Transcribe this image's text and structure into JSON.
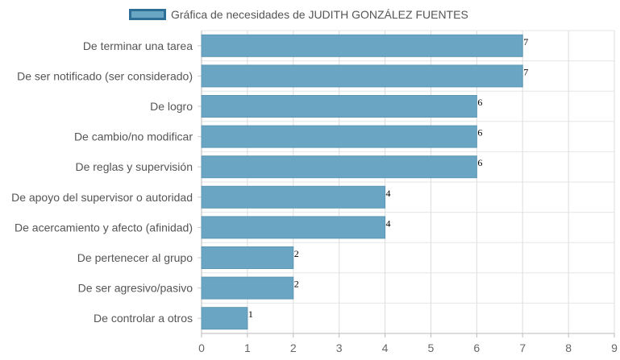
{
  "legend": {
    "label": "Gráfica de necesidades de JUDITH GONZÁLEZ FUENTES"
  },
  "chart_data": {
    "type": "bar",
    "orientation": "horizontal",
    "categories": [
      "De terminar una tarea",
      "De ser notificado (ser considerado)",
      "De logro",
      "De cambio/no modificar",
      "De reglas y supervisión",
      "De apoyo del supervisor o autoridad",
      "De acercamiento y afecto (afinidad)",
      "De pertenecer al grupo",
      "De ser agresivo/pasivo",
      "De controlar a otros"
    ],
    "series": [
      {
        "name": "Gráfica de necesidades de JUDITH GONZÁLEZ FUENTES",
        "values": [
          7,
          7,
          6,
          6,
          6,
          4,
          4,
          2,
          2,
          1
        ]
      }
    ],
    "xlim": [
      0,
      9
    ],
    "x_ticks": [
      "0",
      "1",
      "2",
      "3",
      "4",
      "5",
      "6",
      "7",
      "8",
      "9"
    ],
    "legend_position": "top",
    "grid": true,
    "colors": {
      "bar_fill": "#6aa6c4",
      "bar_border": "#2d6f96",
      "grid": "#dddddd"
    }
  }
}
